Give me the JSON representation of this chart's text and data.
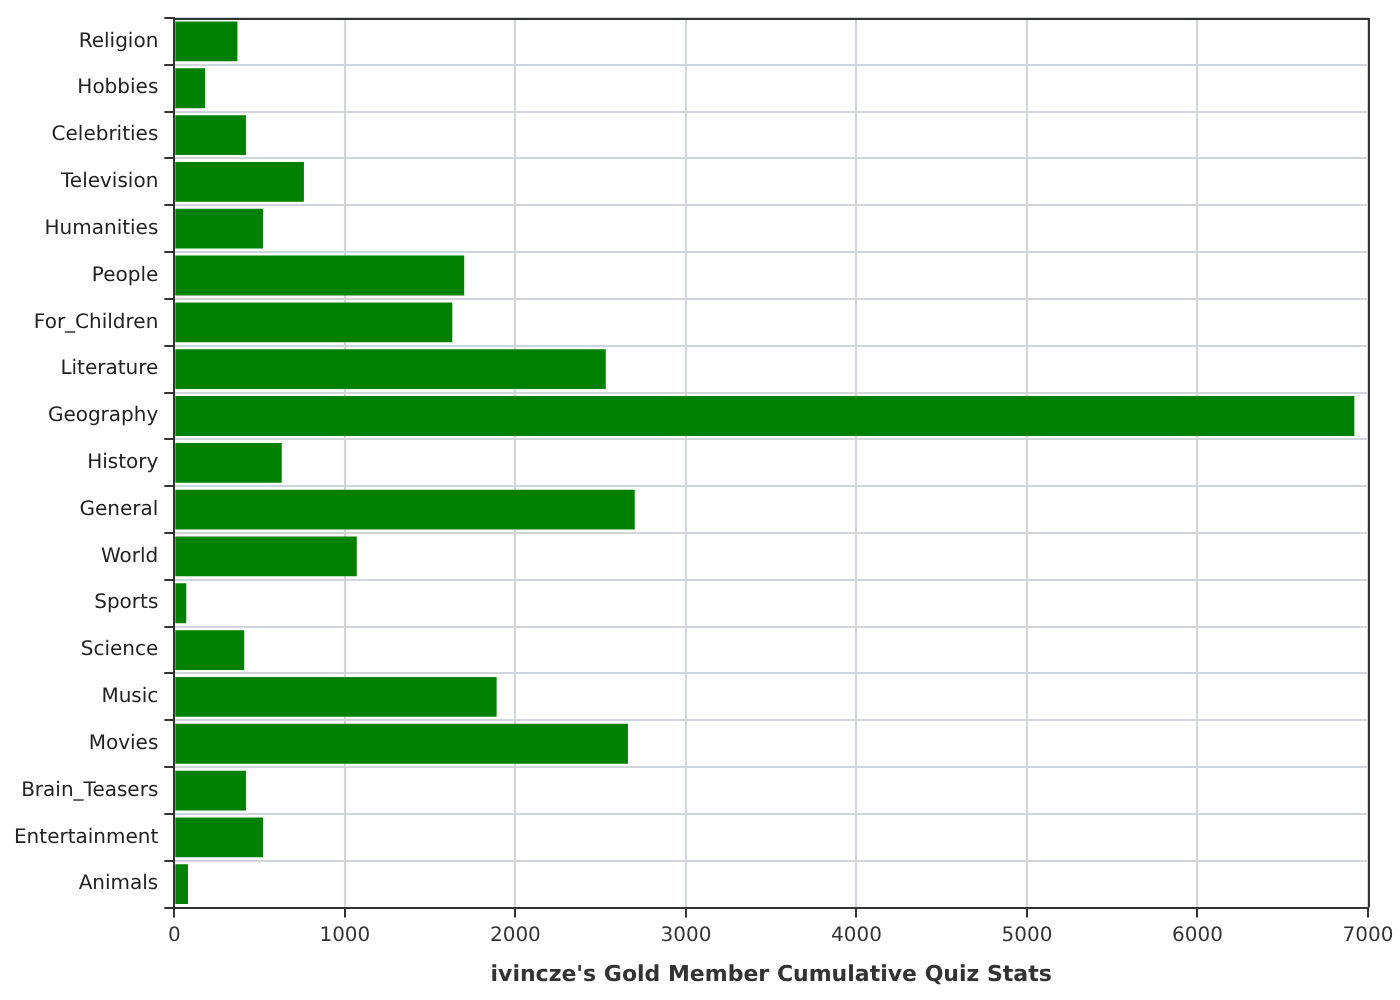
{
  "chart_data": {
    "type": "bar",
    "orientation": "horizontal",
    "xlabel": "ivincze's Gold Member Cumulative Quiz Stats",
    "categories": [
      "Religion",
      "Hobbies",
      "Celebrities",
      "Television",
      "Humanities",
      "People",
      "For_Children",
      "Literature",
      "Geography",
      "History",
      "General",
      "World",
      "Sports",
      "Science",
      "Music",
      "Movies",
      "Brain_Teasers",
      "Entertainment",
      "Animals"
    ],
    "values": [
      370,
      180,
      420,
      760,
      520,
      1700,
      1630,
      2530,
      6920,
      630,
      2700,
      1070,
      70,
      410,
      1890,
      2660,
      420,
      520,
      80
    ],
    "color": "#008000",
    "xlim": [
      0,
      7000
    ],
    "xticks": [
      0,
      1000,
      2000,
      3000,
      4000,
      5000,
      6000,
      7000
    ],
    "grid": true,
    "legend": false
  }
}
